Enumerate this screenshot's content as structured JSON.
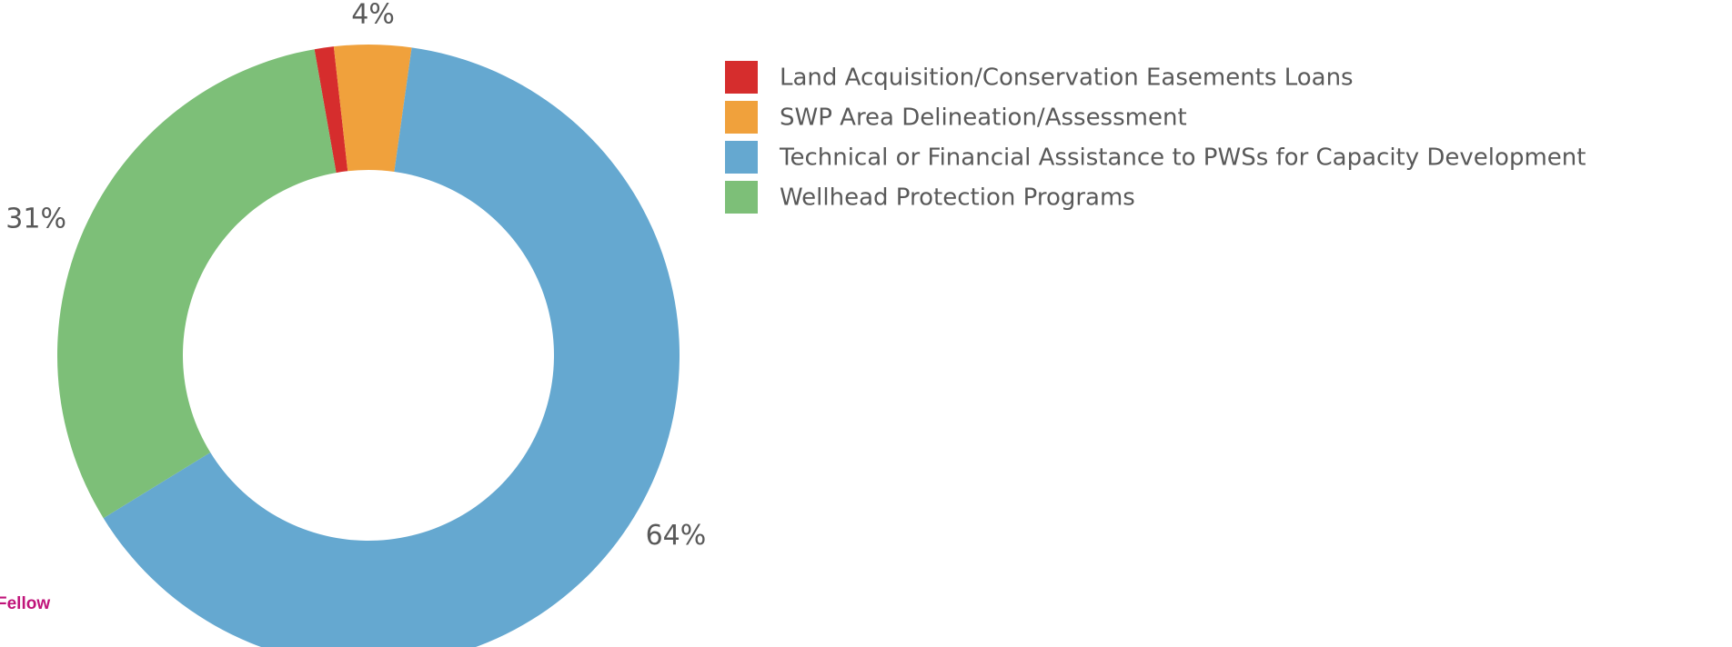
{
  "chart_data": {
    "type": "donut",
    "categories": [
      "Land Acquisition/Conservation Easements Loans",
      "SWP Area Delineation/Assessment",
      "Technical or Financial Assistance to PWSs for Capacity Development",
      "Wellhead Protection Programs"
    ],
    "values": [
      1,
      4,
      64,
      31
    ],
    "value_labels": [
      null,
      "4%",
      "64%",
      "31%"
    ],
    "colors": [
      "#d62d2d",
      "#f0a13c",
      "#65a8d0",
      "#7dbf78"
    ],
    "annotation": "Fellow"
  }
}
